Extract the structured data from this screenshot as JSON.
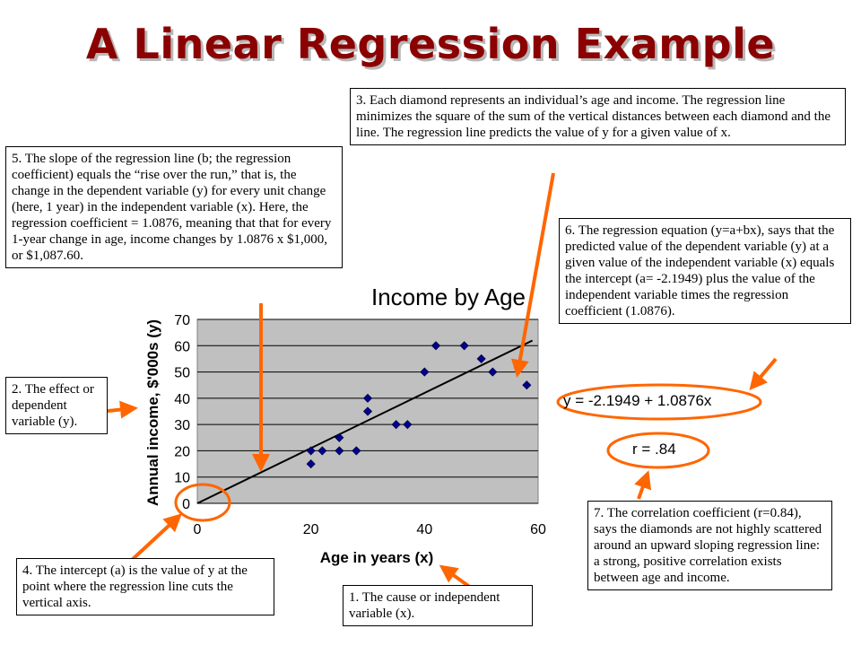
{
  "title": "A Linear Regression Example",
  "notes": {
    "n1": "1. The cause or independent variable (x).",
    "n2": "2. The effect or dependent variable (y).",
    "n3": "3. Each diamond represents an individual’s age and income. The regression line minimizes the square of the sum of the vertical distances between each diamond and the line. The regression line predicts the value of y for a given value of x.",
    "n4": "4. The intercept (a) is the value of y at the point where the regression line cuts the vertical axis.",
    "n5": "5. The slope of the regression line (b; the regression coefficient) equals the “rise over the run,” that is, the change in the dependent variable (y) for every unit change (here, 1 year) in the independent variable (x). Here, the regression coefficient = 1.0876, meaning that that for every 1-year change in age, income changes by 1.0876 x $1,000, or $1,087.60.",
    "n6": "6. The regression equation (y=a+bx), says that the predicted value of the dependent variable (y) at a given value of the independent variable (x) equals the intercept (a= -2.1949) plus the value of the independent variable times the regression coefficient (1.0876).",
    "n7": "7. The correlation coefficient (r=0.84), says the diamonds are not highly scattered around an upward sloping regression line: a strong, positive correlation exists between age and income."
  },
  "equation": "y = -2.1949 + 1.0876x",
  "correlation": "r = .84",
  "colors": {
    "title": "#8b0000",
    "plot_bg": "#c0c0c0",
    "points": "#00008b",
    "arrows": "#ff6600"
  },
  "chart_data": {
    "type": "scatter",
    "title": "Income by Age",
    "xlabel": "Age in years (x)",
    "ylabel": "Annual income, $'000s (y)",
    "xlim": [
      0,
      60
    ],
    "ylim": [
      0,
      70
    ],
    "xticks": [
      0,
      20,
      40,
      60
    ],
    "yticks": [
      0,
      10,
      20,
      30,
      40,
      50,
      60,
      70
    ],
    "grid": true,
    "points": [
      {
        "x": 20,
        "y": 20
      },
      {
        "x": 20,
        "y": 15
      },
      {
        "x": 22,
        "y": 20
      },
      {
        "x": 25,
        "y": 25
      },
      {
        "x": 25,
        "y": 20
      },
      {
        "x": 28,
        "y": 20
      },
      {
        "x": 30,
        "y": 40
      },
      {
        "x": 30,
        "y": 35
      },
      {
        "x": 35,
        "y": 30
      },
      {
        "x": 37,
        "y": 30
      },
      {
        "x": 40,
        "y": 50
      },
      {
        "x": 42,
        "y": 60
      },
      {
        "x": 47,
        "y": 60
      },
      {
        "x": 50,
        "y": 55
      },
      {
        "x": 52,
        "y": 50
      },
      {
        "x": 58,
        "y": 45
      }
    ],
    "regression": {
      "intercept": -2.1949,
      "slope": 1.0876,
      "x_range": [
        0,
        59
      ]
    }
  }
}
